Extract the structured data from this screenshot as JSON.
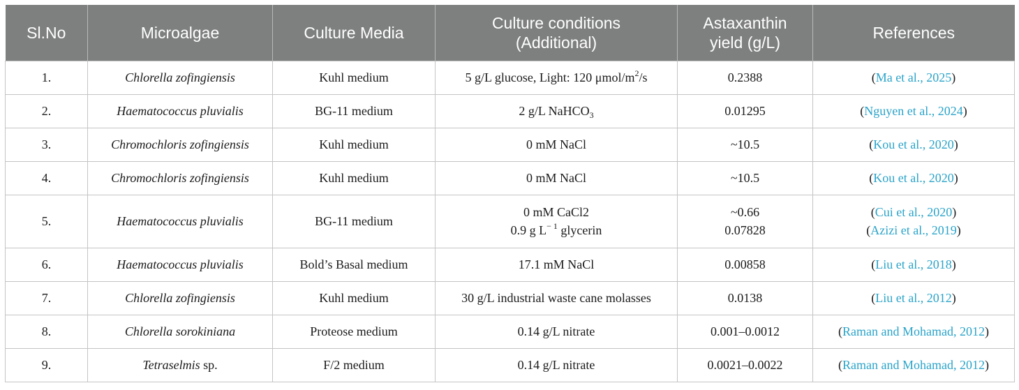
{
  "headers": {
    "slno": "Sl.No",
    "microalgae": "Microalgae",
    "media": "Culture Media",
    "conditions_line1": "Culture conditions",
    "conditions_line2": "(Additional)",
    "yield_line1": "Astaxanthin",
    "yield_line2": "yield (g/L)",
    "references": "References"
  },
  "rows": [
    {
      "no": "1.",
      "genus": "Chlorella zofingiensis",
      "species_suffix": "",
      "media": "Kuhl medium",
      "cond_pre": "5 g/L glucose, Light: 120 μmol/m",
      "cond_sup": "2",
      "cond_post": "/s",
      "yield": "0.2388",
      "ref": "Ma et al., 2025"
    },
    {
      "no": "2.",
      "genus": "Haematococcus pluvialis",
      "species_suffix": "",
      "media": "BG-11 medium",
      "cond_pre": "2 g/L NaHCO",
      "cond_sub": "3",
      "yield": "0.01295",
      "ref": "Nguyen et al., 2024"
    },
    {
      "no": "3.",
      "genus": "Chromochloris zofingiensis",
      "species_suffix": "",
      "media": "Kuhl medium",
      "cond": "0 mM NaCl",
      "yield": "~10.5",
      "ref": "Kou et al., 2020"
    },
    {
      "no": "4.",
      "genus": "Chromochloris zofingiensis",
      "species_suffix": "",
      "media": "Kuhl medium",
      "cond": "0 mM NaCl",
      "yield": "~10.5",
      "ref": "Kou et al., 2020"
    },
    {
      "no": "5.",
      "genus": "Haematococcus pluvialis",
      "species_suffix": "",
      "media": "BG-11 medium",
      "cond_a": "0 mM CaCl2",
      "cond_b_pre": "0.9 g L",
      "cond_b_sup": "− 1",
      "cond_b_post": " glycerin",
      "yield_a": "~0.66",
      "yield_b": "0.07828",
      "ref_a": "Cui et al., 2020",
      "ref_b": "Azizi et al., 2019"
    },
    {
      "no": "6.",
      "genus": "Haematococcus pluvialis",
      "species_suffix": "",
      "media": "Bold’s Basal medium",
      "cond": "17.1 mM NaCl",
      "yield": "0.00858",
      "ref": "Liu et al., 2018"
    },
    {
      "no": "7.",
      "genus": "Chlorella zofingiensis",
      "species_suffix": "",
      "media": "Kuhl medium",
      "cond": "30 g/L industrial waste cane molasses",
      "yield": "0.0138",
      "ref": "Liu et al., 2012"
    },
    {
      "no": "8.",
      "genus": "Chlorella sorokiniana",
      "species_suffix": "",
      "media": "Proteose medium",
      "cond": "0.14 g/L nitrate",
      "yield": "0.001–0.0012",
      "ref": "Raman and Mohamad, 2012"
    },
    {
      "no": "9.",
      "genus": "Tetraselmis",
      "species_suffix": " sp.",
      "media": "F/2 medium",
      "cond": "0.14 g/L nitrate",
      "yield": "0.0021–0.0022",
      "ref": "Raman and Mohamad, 2012"
    }
  ],
  "colors": {
    "header_bg": "#7e7f7f",
    "header_text": "#ffffff",
    "link": "#2aa3c9",
    "border": "#c4c4c4"
  }
}
